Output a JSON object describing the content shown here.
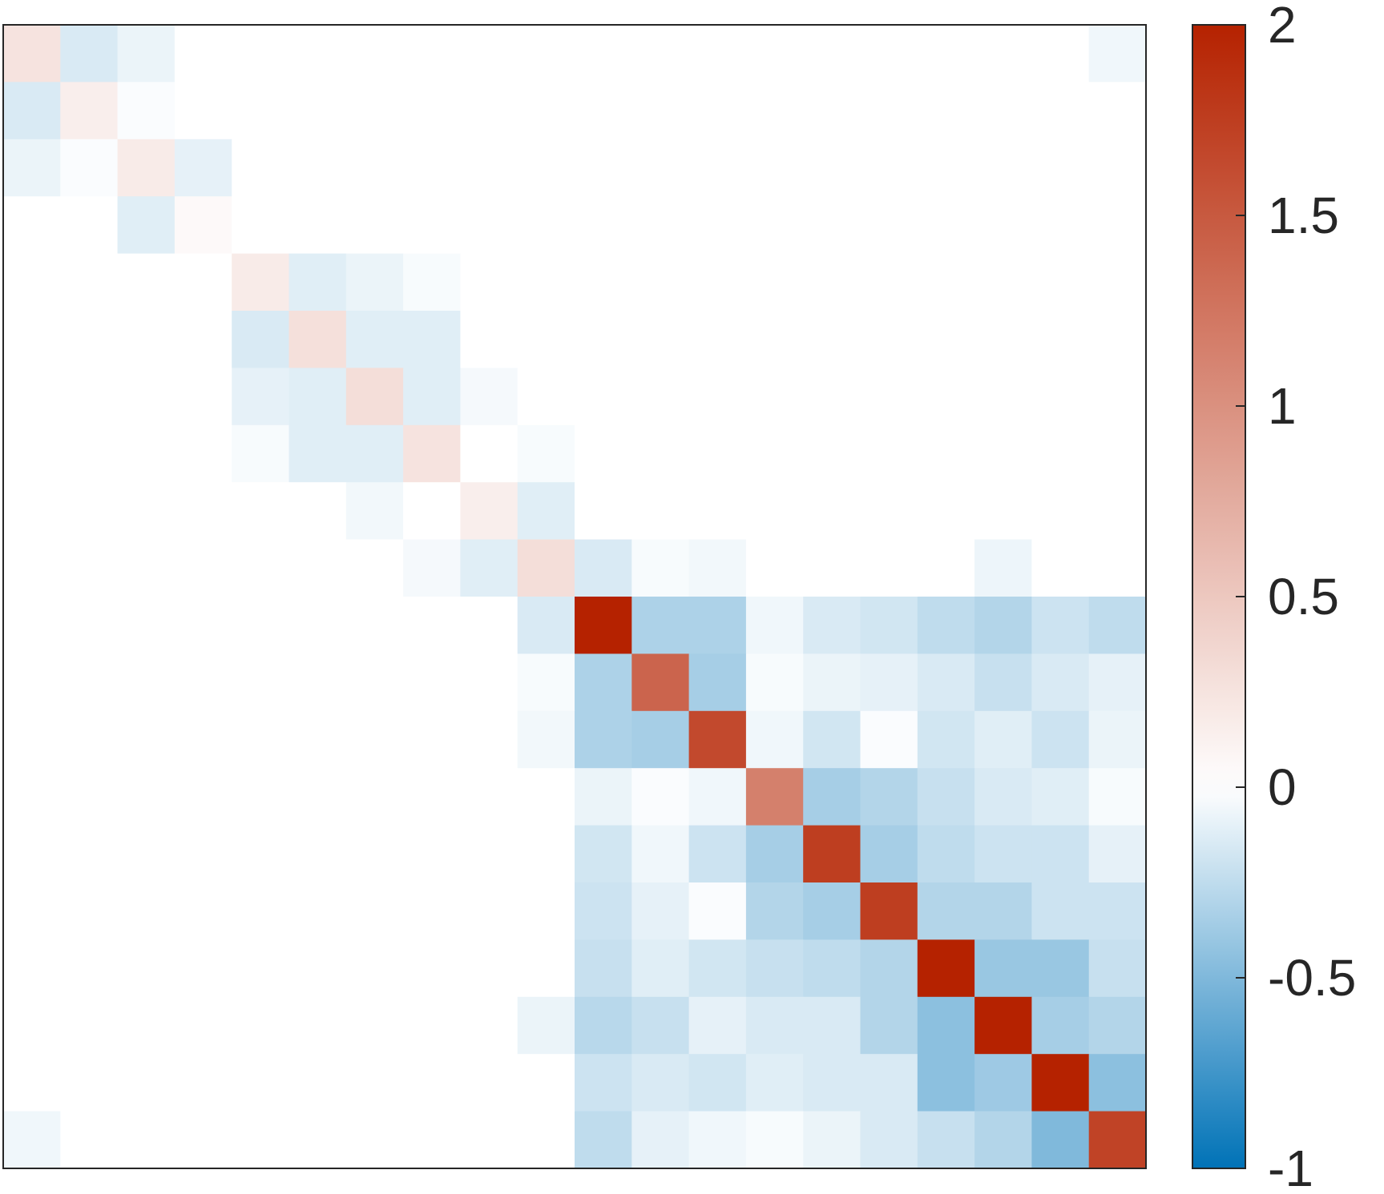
{
  "chart_data": {
    "type": "heatmap",
    "title": "",
    "xlabel": "",
    "ylabel": "",
    "rows": 20,
    "cols": 20,
    "values": [
      [
        0.25,
        -0.15,
        -0.08,
        0,
        0,
        0,
        0,
        0,
        0,
        0,
        0,
        0,
        0,
        0,
        0,
        0,
        0,
        0,
        0,
        -0.06
      ],
      [
        -0.15,
        0.15,
        -0.02,
        0,
        0,
        0,
        0,
        0,
        0,
        0,
        0,
        0,
        0,
        0,
        0,
        0,
        0,
        0,
        0,
        0
      ],
      [
        -0.08,
        -0.02,
        0.18,
        -0.1,
        0,
        0,
        0,
        0,
        0,
        0,
        0,
        0,
        0,
        0,
        0,
        0,
        0,
        0,
        0,
        0
      ],
      [
        0,
        0,
        -0.12,
        0.05,
        0,
        0,
        0,
        0,
        0,
        0,
        0,
        0,
        0,
        0,
        0,
        0,
        0,
        0,
        0,
        0
      ],
      [
        0,
        0,
        0,
        0,
        0.18,
        -0.12,
        -0.08,
        -0.03,
        0,
        0,
        0,
        0,
        0,
        0,
        0,
        0,
        0,
        0,
        0,
        0
      ],
      [
        0,
        0,
        0,
        0,
        -0.15,
        0.28,
        -0.12,
        -0.12,
        0,
        0,
        0,
        0,
        0,
        0,
        0,
        0,
        0,
        0,
        0,
        0
      ],
      [
        0,
        0,
        0,
        0,
        -0.1,
        -0.12,
        0.3,
        -0.12,
        -0.04,
        0,
        0,
        0,
        0,
        0,
        0,
        0,
        0,
        0,
        0,
        0
      ],
      [
        0,
        0,
        0,
        0,
        -0.03,
        -0.12,
        -0.12,
        0.25,
        0,
        -0.03,
        0,
        0,
        0,
        0,
        0,
        0,
        0,
        0,
        0,
        0
      ],
      [
        0,
        0,
        0,
        0,
        0,
        0,
        -0.05,
        0,
        0.15,
        -0.12,
        0,
        0,
        0,
        0,
        0,
        0,
        0,
        0,
        0,
        0
      ],
      [
        0,
        0,
        0,
        0,
        0,
        0,
        0,
        -0.04,
        -0.12,
        0.3,
        -0.15,
        -0.03,
        -0.05,
        0,
        0,
        0,
        0,
        -0.07,
        0,
        0
      ],
      [
        0,
        0,
        0,
        0,
        0,
        0,
        0,
        0,
        0,
        -0.15,
        2.0,
        -0.32,
        -0.32,
        -0.06,
        -0.15,
        -0.18,
        -0.25,
        -0.3,
        -0.2,
        -0.25
      ],
      [
        0,
        0,
        0,
        0,
        0,
        0,
        0,
        0,
        0,
        -0.03,
        -0.32,
        1.4,
        -0.35,
        -0.03,
        -0.08,
        -0.1,
        -0.15,
        -0.22,
        -0.15,
        -0.1
      ],
      [
        0,
        0,
        0,
        0,
        0,
        0,
        0,
        0,
        0,
        -0.05,
        -0.32,
        -0.35,
        1.65,
        -0.06,
        -0.18,
        -0.02,
        -0.18,
        -0.12,
        -0.2,
        -0.08
      ],
      [
        0,
        0,
        0,
        0,
        0,
        0,
        0,
        0,
        0,
        0,
        -0.08,
        -0.02,
        -0.06,
        1.15,
        -0.35,
        -0.3,
        -0.22,
        -0.15,
        -0.12,
        -0.03
      ],
      [
        0,
        0,
        0,
        0,
        0,
        0,
        0,
        0,
        0,
        0,
        -0.18,
        -0.06,
        -0.2,
        -0.35,
        1.75,
        -0.35,
        -0.25,
        -0.2,
        -0.2,
        -0.1
      ],
      [
        0,
        0,
        0,
        0,
        0,
        0,
        0,
        0,
        0,
        0,
        -0.2,
        -0.1,
        -0.02,
        -0.3,
        -0.35,
        1.75,
        -0.3,
        -0.3,
        -0.2,
        -0.2
      ],
      [
        0,
        0,
        0,
        0,
        0,
        0,
        0,
        0,
        0,
        0,
        -0.22,
        -0.12,
        -0.18,
        -0.22,
        -0.25,
        -0.3,
        2.0,
        -0.4,
        -0.4,
        -0.22
      ],
      [
        0,
        0,
        0,
        0,
        0,
        0,
        0,
        0,
        0,
        -0.08,
        -0.28,
        -0.22,
        -0.1,
        -0.15,
        -0.15,
        -0.3,
        -0.45,
        2.0,
        -0.35,
        -0.3
      ],
      [
        0,
        0,
        0,
        0,
        0,
        0,
        0,
        0,
        0,
        0,
        -0.2,
        -0.15,
        -0.18,
        -0.12,
        -0.15,
        -0.15,
        -0.45,
        -0.38,
        2.0,
        -0.45
      ],
      [
        -0.06,
        0,
        0,
        0,
        0,
        0,
        0,
        0,
        0,
        0,
        -0.25,
        -0.1,
        -0.06,
        -0.03,
        -0.08,
        -0.15,
        -0.22,
        -0.3,
        -0.5,
        1.7
      ]
    ],
    "colorbar": {
      "min": -1,
      "max": 2,
      "ticks": [
        -1,
        -0.5,
        0,
        0.5,
        1,
        1.5,
        2
      ],
      "tick_labels": [
        "-1",
        "-0.5",
        "0",
        "0.5",
        "1",
        "1.5",
        "2"
      ],
      "colormap": {
        "low": "#0072b7",
        "mid": "#ffffff",
        "high": "#b52200"
      }
    },
    "grid": false,
    "legend": "none"
  },
  "colors": {
    "axes_border": "#262626",
    "tick_text": "#262626",
    "background": "#ffffff"
  }
}
